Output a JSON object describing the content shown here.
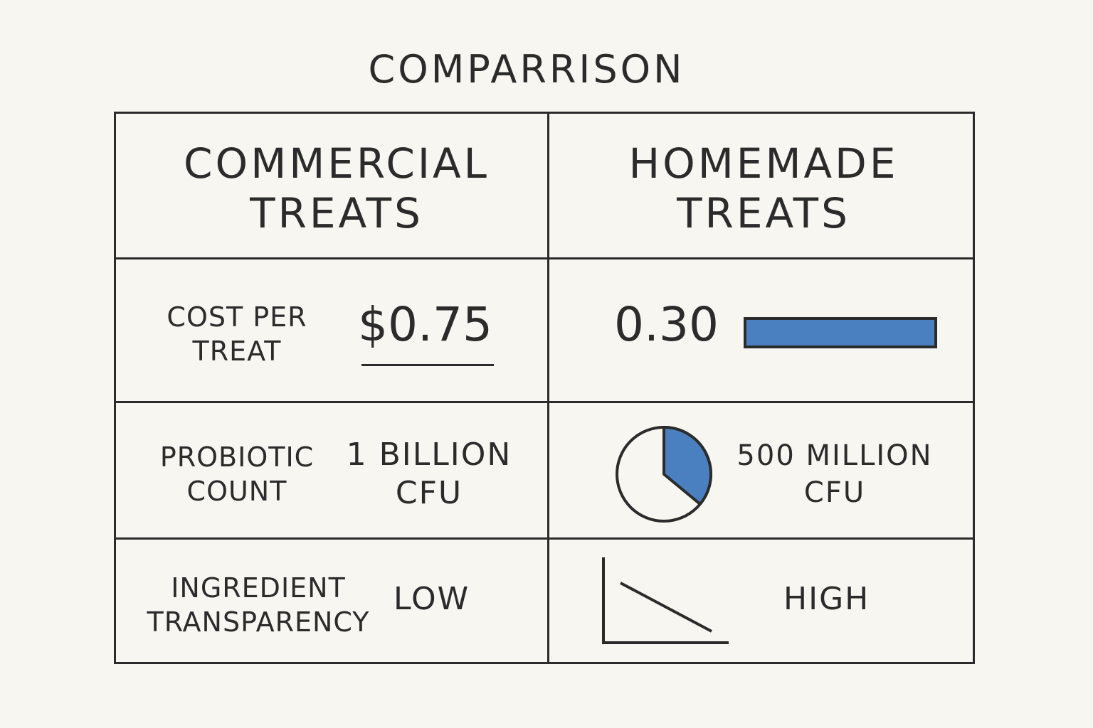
{
  "title": "COMPARRISON",
  "columns": {
    "commercial": "COMMERCIAL TREATS",
    "homemade": "HOMEMADE TREATS"
  },
  "rows": [
    {
      "label": "COST PER TREAT",
      "commercial": "$0.75",
      "homemade": "0.30"
    },
    {
      "label": "PROBIOTIC COUNT",
      "commercial": "1 BILLION CFU",
      "homemade": "500 MILLION CFU"
    },
    {
      "label": "INGREDIENT TRANSPARENCY",
      "commercial": "LOW",
      "homemade": "HIGH"
    }
  ],
  "visuals": {
    "accent_color": "#4a80bf",
    "ink_color": "#2b2b2b",
    "cost_bar_icon": "horizontal-bar",
    "probiotic_icon": "pie-chart",
    "probiotic_pie_share": 0.36,
    "transparency_icon": "declining-line-chart"
  }
}
